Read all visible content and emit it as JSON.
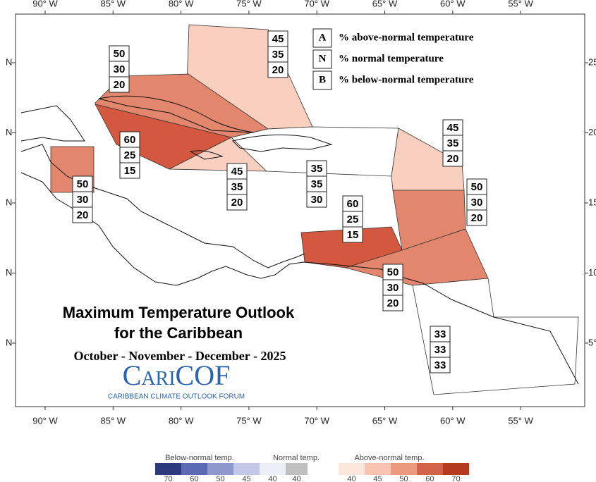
{
  "map": {
    "lon_labels": [
      "90° W",
      "85° W",
      "80° W",
      "75° W",
      "70° W",
      "65° W",
      "60° W",
      "55° W"
    ],
    "lat_labels_left": [
      "N",
      "N",
      "N",
      "N",
      "N"
    ],
    "lat_labels_right": [
      "25°",
      "20°",
      "15",
      "10°",
      "5°"
    ],
    "key": [
      {
        "letter": "A",
        "text": "% above-normal temperature"
      },
      {
        "letter": "N",
        "text": "% normal temperature"
      },
      {
        "letter": "B",
        "text": "% below-normal temperature"
      }
    ],
    "regions": [
      {
        "values": [
          45,
          35,
          20
        ],
        "color": "#f9cfc0"
      },
      {
        "values": [
          50,
          30,
          20
        ],
        "color": "#e2876d"
      },
      {
        "values": [
          60,
          25,
          15
        ],
        "color": "#d4583f"
      },
      {
        "values": [
          45,
          35,
          20
        ],
        "color": "#f9cfc0"
      },
      {
        "values": [
          35,
          35,
          30
        ],
        "color": "#ffffff"
      },
      {
        "values": [
          50,
          30,
          20
        ],
        "color": "#e2876d"
      },
      {
        "values": [
          45,
          35,
          20
        ],
        "color": "#f9cfc0"
      },
      {
        "values": [
          50,
          30,
          20
        ],
        "color": "#e2876d"
      },
      {
        "values": [
          60,
          25,
          15
        ],
        "color": "#d4583f"
      },
      {
        "values": [
          50,
          30,
          20
        ],
        "color": "#e2876d"
      },
      {
        "values": [
          33,
          33,
          33
        ],
        "color": "#ffffff"
      }
    ],
    "title_lines": [
      "Maximum Temperature Outlook",
      "for the Caribbean"
    ],
    "subtitle": "October - November - December - 2025",
    "logo": "CariCOF",
    "logo_tagline": "CARIBBEAN CLIMATE OUTLOOK FORUM"
  },
  "colorbar": {
    "groups": [
      {
        "title": "Below-normal temp.",
        "bins": [
          {
            "label": 70,
            "color": "#2c3a7e"
          },
          {
            "label": 60,
            "color": "#5b6ab3"
          },
          {
            "label": 50,
            "color": "#8e98cd"
          },
          {
            "label": 45,
            "color": "#c3c8e8"
          },
          {
            "label": 40,
            "color": "#eceef8"
          }
        ]
      },
      {
        "title": "Normal temp.",
        "bins": [
          {
            "label": 40,
            "color": "#c0c0c0"
          }
        ]
      },
      {
        "title": "Above-normal temp.",
        "bins": [
          {
            "label": 40,
            "color": "#fde6dc"
          },
          {
            "label": 45,
            "color": "#f8c3b0"
          },
          {
            "label": 50,
            "color": "#ea9a7f"
          },
          {
            "label": 60,
            "color": "#d2624a"
          },
          {
            "label": 70,
            "color": "#b43a20"
          }
        ]
      }
    ]
  }
}
